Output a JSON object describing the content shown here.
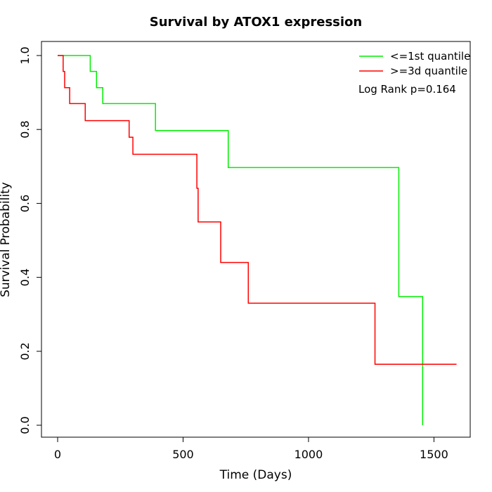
{
  "chart_data": {
    "type": "line",
    "title": "Survival by ATOX1 expression",
    "xlabel": "Time (Days)",
    "ylabel": "Survival Probability",
    "xlim": [
      0,
      1650
    ],
    "ylim": [
      0,
      1.0
    ],
    "x_ticks": [
      "0",
      "500",
      "1000",
      "1500"
    ],
    "y_ticks": [
      "0.0",
      "0.2",
      "0.4",
      "0.6",
      "0.8",
      "1.0"
    ],
    "legend_position": "top-right",
    "annotation": "Log Rank p=0.164",
    "series": [
      {
        "name": "<=1st quantile",
        "color": "#00ee00",
        "steps": [
          [
            0,
            1.0
          ],
          [
            130,
            0.957
          ],
          [
            155,
            0.913
          ],
          [
            180,
            0.87
          ],
          [
            390,
            0.797
          ],
          [
            680,
            0.697
          ],
          [
            1360,
            0.348
          ],
          [
            1455,
            0.0
          ]
        ]
      },
      {
        "name": ">=3d quantile",
        "color": "#ff0000",
        "steps": [
          [
            0,
            1.0
          ],
          [
            22,
            0.957
          ],
          [
            28,
            0.913
          ],
          [
            48,
            0.87
          ],
          [
            110,
            0.824
          ],
          [
            285,
            0.779
          ],
          [
            300,
            0.733
          ],
          [
            555,
            0.641
          ],
          [
            560,
            0.55
          ],
          [
            650,
            0.44
          ],
          [
            760,
            0.33
          ],
          [
            1265,
            0.165
          ],
          [
            1590,
            0.165
          ]
        ]
      }
    ]
  }
}
